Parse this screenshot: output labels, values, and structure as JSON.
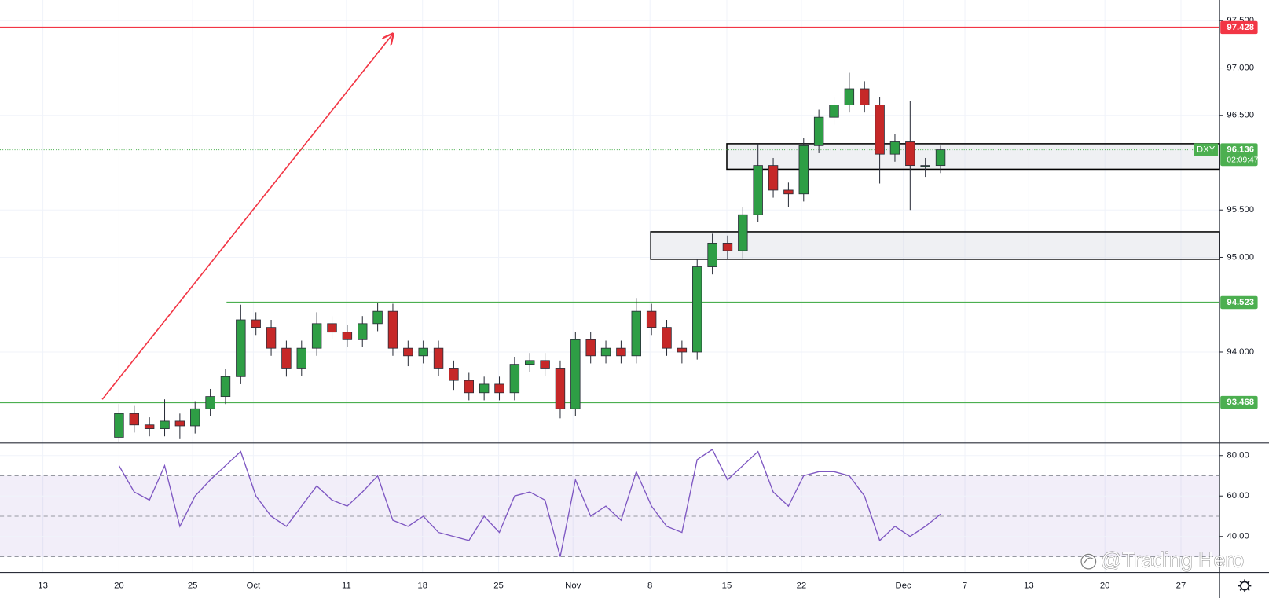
{
  "chart_data": {
    "type": "candlestick",
    "x": [
      5,
      6,
      7,
      8,
      9,
      10,
      11,
      12,
      13,
      14,
      15,
      16,
      17,
      18,
      19,
      20,
      21,
      22,
      23,
      24,
      25,
      26,
      27,
      28,
      29,
      30,
      31,
      32,
      33,
      34,
      35,
      36,
      37,
      38,
      39,
      40,
      41,
      42,
      43,
      44,
      45,
      46,
      47,
      48,
      49,
      50,
      51,
      52,
      53,
      54,
      55,
      56,
      57,
      58,
      59
    ],
    "open": [
      93.1,
      93.35,
      93.23,
      93.19,
      93.27,
      93.22,
      93.4,
      93.53,
      93.74,
      94.34,
      94.26,
      94.04,
      93.83,
      94.04,
      94.3,
      94.21,
      94.13,
      94.3,
      94.43,
      94.04,
      93.96,
      94.04,
      93.83,
      93.7,
      93.57,
      93.66,
      93.57,
      93.87,
      93.91,
      93.83,
      93.4,
      94.13,
      93.96,
      94.04,
      93.96,
      94.43,
      94.26,
      94.04,
      94.0,
      94.9,
      95.15,
      95.07,
      95.45,
      95.97,
      95.71,
      95.67,
      96.18,
      96.48,
      96.61,
      96.78,
      96.61,
      96.09,
      96.22,
      95.97,
      95.97
    ],
    "high": [
      93.45,
      93.43,
      93.31,
      93.5,
      93.35,
      93.48,
      93.61,
      93.82,
      94.5,
      94.42,
      94.34,
      94.12,
      94.12,
      94.42,
      94.38,
      94.29,
      94.38,
      94.52,
      94.51,
      94.12,
      94.12,
      94.12,
      93.91,
      93.78,
      93.74,
      93.74,
      93.95,
      93.99,
      93.99,
      93.91,
      94.21,
      94.21,
      94.12,
      94.12,
      94.57,
      94.51,
      94.34,
      94.12,
      94.98,
      95.25,
      95.23,
      95.53,
      96.2,
      96.05,
      95.79,
      96.26,
      96.56,
      96.69,
      96.95,
      96.86,
      96.69,
      96.3,
      96.65,
      96.05,
      96.18
    ],
    "low": [
      93.05,
      93.15,
      93.11,
      93.11,
      93.08,
      93.14,
      93.32,
      93.45,
      93.66,
      94.18,
      93.96,
      93.74,
      93.75,
      93.96,
      94.13,
      94.05,
      94.05,
      94.22,
      93.96,
      93.85,
      93.88,
      93.75,
      93.6,
      93.49,
      93.49,
      93.49,
      93.49,
      93.79,
      93.75,
      93.3,
      93.32,
      93.88,
      93.88,
      93.88,
      93.88,
      94.18,
      93.96,
      93.88,
      93.92,
      94.82,
      94.98,
      94.99,
      95.37,
      95.63,
      95.53,
      95.59,
      96.1,
      96.4,
      96.53,
      96.53,
      95.78,
      96.01,
      95.5,
      95.85,
      95.89
    ],
    "close": [
      93.35,
      93.23,
      93.19,
      93.27,
      93.22,
      93.4,
      93.53,
      93.74,
      94.34,
      94.26,
      94.04,
      93.83,
      94.04,
      94.3,
      94.21,
      94.13,
      94.3,
      94.43,
      94.04,
      93.96,
      94.04,
      93.83,
      93.7,
      93.57,
      93.66,
      93.57,
      93.87,
      93.91,
      93.83,
      93.4,
      94.13,
      93.96,
      94.04,
      93.96,
      94.43,
      94.26,
      94.04,
      94.0,
      94.9,
      95.15,
      95.07,
      95.45,
      95.97,
      95.71,
      95.67,
      96.18,
      96.48,
      96.61,
      96.78,
      96.61,
      96.09,
      96.22,
      95.97,
      95.97,
      96.136
    ],
    "up_color": "#2e9e45",
    "down_color": "#c62828",
    "xlim": [
      -2.82,
      77.34
    ],
    "xticks": [
      {
        "value": 0,
        "label": "13"
      },
      {
        "value": 5,
        "label": "20"
      },
      {
        "value": 9.84,
        "label": "25"
      },
      {
        "value": 13.83,
        "label": "Oct"
      },
      {
        "value": 19.95,
        "label": "11"
      },
      {
        "value": 24.95,
        "label": "18"
      },
      {
        "value": 29.95,
        "label": "25"
      },
      {
        "value": 34.84,
        "label": "Nov"
      },
      {
        "value": 39.9,
        "label": "8"
      },
      {
        "value": 44.95,
        "label": "15"
      },
      {
        "value": 49.85,
        "label": "22"
      },
      {
        "value": 56.55,
        "label": "Dec"
      },
      {
        "value": 60.6,
        "label": "7"
      },
      {
        "value": 64.8,
        "label": "13"
      },
      {
        "value": 69.8,
        "label": "20"
      },
      {
        "value": 74.8,
        "label": "27"
      }
    ],
    "ylim": [
      93.043,
      97.718
    ],
    "yticks": [
      {
        "value": 97.5,
        "label": "97.500"
      },
      {
        "value": 97,
        "label": "97.000"
      },
      {
        "value": 96.5,
        "label": "96.500"
      },
      {
        "value": 95.5,
        "label": "95.500"
      },
      {
        "value": 95,
        "label": "95.000"
      },
      {
        "value": 94,
        "label": "94.000"
      }
    ],
    "grid": true,
    "levels": [
      {
        "value": 97.428,
        "color": "#f23645"
      },
      {
        "value": 94.523,
        "color": "#4caf50",
        "from": 12.07
      },
      {
        "value": 93.468,
        "color": "#4caf50"
      }
    ],
    "zones": [
      {
        "from": 44.95,
        "top": 96.2,
        "bottom": 95.93
      },
      {
        "from": 39.95,
        "top": 95.27,
        "bottom": 94.98
      }
    ],
    "trendline": {
      "from": [
        3.9,
        93.5
      ],
      "to": [
        23.0,
        97.36
      ],
      "color": "#f23645"
    },
    "last": {
      "symbol": "DXY",
      "value": 96.136,
      "countdown": "02:09:47",
      "color": "#4caf50"
    },
    "rsi": {
      "values": [
        75,
        62,
        58,
        75,
        45,
        60,
        68,
        75,
        82,
        60,
        50,
        45,
        55,
        65,
        58,
        55,
        62,
        70,
        48,
        45,
        50,
        42,
        40,
        38,
        50,
        42,
        60,
        62,
        58,
        30,
        68,
        50,
        55,
        48,
        72,
        55,
        45,
        42,
        78,
        83,
        68,
        75,
        82,
        62,
        55,
        70,
        72,
        72,
        70,
        60,
        38,
        45,
        40,
        45,
        51
      ],
      "color": "#7e57c2",
      "ylim": [
        22.4,
        86
      ],
      "yticks": [
        {
          "value": 80,
          "label": "80.00"
        },
        {
          "value": 60,
          "label": "60.00"
        },
        {
          "value": 40,
          "label": "40.00"
        }
      ],
      "bands": [
        70,
        50,
        30
      ]
    },
    "watermark": "@Trading Hero"
  }
}
